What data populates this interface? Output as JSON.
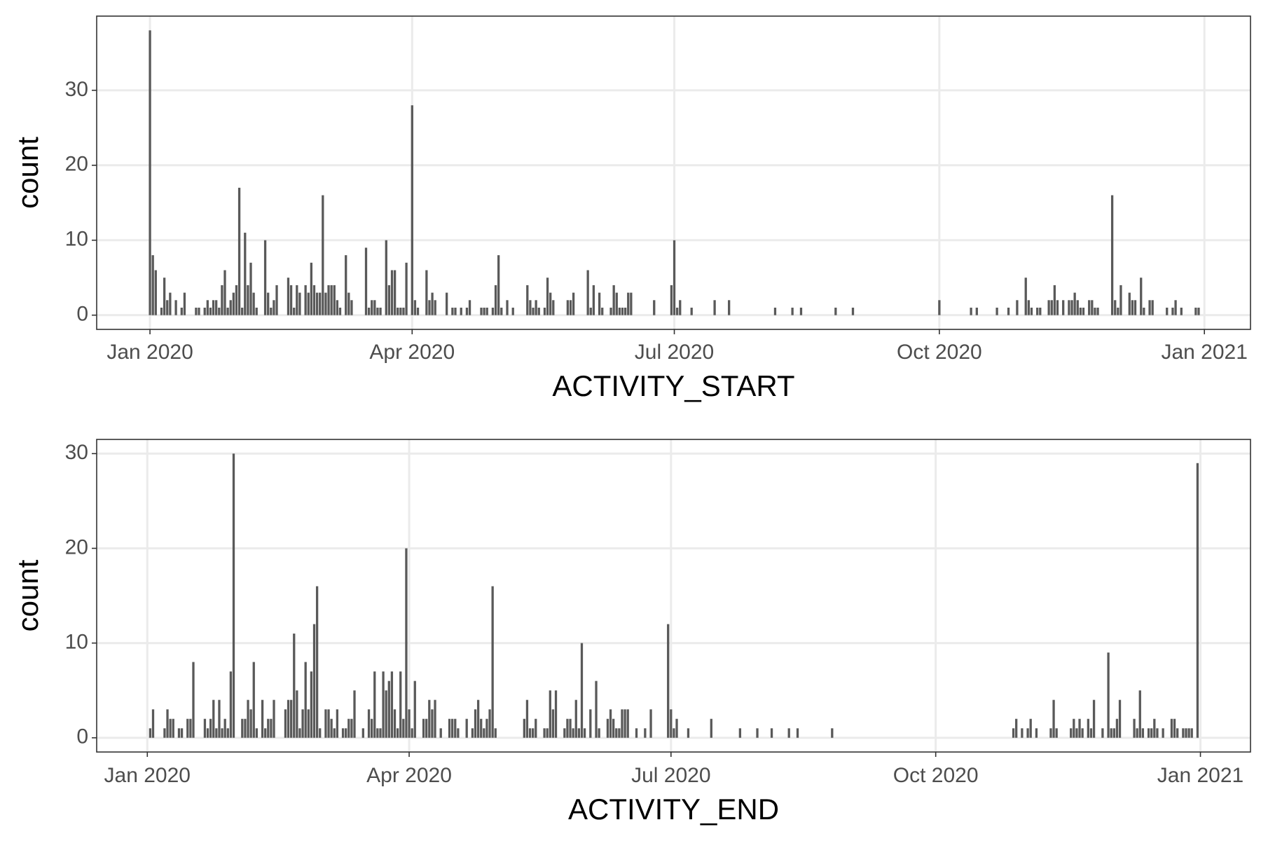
{
  "chart_data": [
    {
      "type": "bar",
      "xlabel": "ACTIVITY_START",
      "ylabel": "count",
      "color": "#595959",
      "grid": true,
      "xlim": [
        -18.5,
        382
      ],
      "xticks": [
        {
          "value": 0,
          "label": "Jan 2020"
        },
        {
          "value": 91,
          "label": "Apr 2020"
        },
        {
          "value": 182,
          "label": "Jul 2020"
        },
        {
          "value": 274,
          "label": "Oct 2020"
        },
        {
          "value": 366,
          "label": "Jan 2021"
        }
      ],
      "ylim": [
        -1.9,
        39.9
      ],
      "yticks": [
        0,
        10,
        20,
        30
      ],
      "x": [
        0,
        1,
        2,
        4,
        5,
        6,
        7,
        9,
        11,
        12,
        16,
        17,
        19,
        20,
        21,
        22,
        23,
        24,
        25,
        26,
        27,
        28,
        29,
        30,
        31,
        32,
        33,
        34,
        35,
        36,
        37,
        40,
        41,
        42,
        43,
        44,
        48,
        49,
        50,
        51,
        52,
        54,
        55,
        56,
        57,
        58,
        59,
        60,
        61,
        62,
        63,
        64,
        65,
        66,
        68,
        69,
        70,
        75,
        76,
        77,
        78,
        79,
        80,
        82,
        83,
        84,
        85,
        86,
        87,
        88,
        89,
        91,
        92,
        93,
        96,
        97,
        98,
        99,
        103,
        105,
        106,
        108,
        110,
        111,
        115,
        116,
        117,
        119,
        120,
        121,
        122,
        124,
        126,
        131,
        132,
        133,
        134,
        135,
        137,
        138,
        139,
        140,
        145,
        146,
        147,
        152,
        153,
        154,
        156,
        157,
        160,
        161,
        162,
        163,
        164,
        165,
        166,
        167,
        175,
        181,
        182,
        183,
        184,
        188,
        196,
        201,
        217,
        223,
        226,
        238,
        244,
        274,
        285,
        287,
        294,
        298,
        301,
        304,
        305,
        306,
        308,
        309,
        312,
        313,
        314,
        315,
        317,
        319,
        320,
        321,
        322,
        323,
        324,
        326,
        327,
        328,
        329,
        334,
        335,
        336,
        337,
        340,
        341,
        342,
        344,
        345,
        347,
        348,
        353,
        355,
        356,
        358,
        363,
        364
      ],
      "values": [
        38,
        8,
        6,
        1,
        5,
        2,
        3,
        2,
        1,
        3,
        1,
        1,
        1,
        2,
        1,
        2,
        2,
        1,
        4,
        6,
        1,
        2,
        3,
        4,
        17,
        1,
        11,
        4,
        7,
        3,
        1,
        10,
        3,
        1,
        2,
        4,
        5,
        4,
        1,
        4,
        3,
        4,
        3,
        7,
        4,
        3,
        3,
        16,
        3,
        4,
        4,
        4,
        2,
        1,
        8,
        3,
        2,
        9,
        1,
        2,
        2,
        1,
        1,
        10,
        4,
        6,
        6,
        1,
        1,
        1,
        7,
        28,
        2,
        1,
        6,
        2,
        3,
        2,
        3,
        1,
        1,
        1,
        1,
        2,
        1,
        1,
        1,
        1,
        4,
        8,
        1,
        2,
        1,
        4,
        2,
        1,
        2,
        1,
        1,
        5,
        3,
        2,
        2,
        2,
        3,
        6,
        1,
        4,
        3,
        1,
        1,
        4,
        3,
        1,
        1,
        1,
        3,
        3,
        2,
        4,
        10,
        1,
        2,
        1,
        2,
        2,
        1,
        1,
        1,
        1,
        1,
        2,
        1,
        1,
        1,
        1,
        2,
        5,
        2,
        1,
        1,
        1,
        2,
        2,
        4,
        2,
        2,
        2,
        2,
        3,
        2,
        1,
        1,
        2,
        2,
        1,
        1,
        16,
        2,
        1,
        4,
        3,
        2,
        2,
        5,
        1,
        2,
        2,
        1,
        1,
        2,
        1,
        1,
        1
      ]
    },
    {
      "type": "bar",
      "xlabel": "ACTIVITY_END",
      "ylabel": "count",
      "color": "#595959",
      "grid": true,
      "xlim": [
        -17.6,
        383.4
      ],
      "xticks": [
        {
          "value": 0,
          "label": "Jan 2020"
        },
        {
          "value": 91,
          "label": "Apr 2020"
        },
        {
          "value": 182,
          "label": "Jul 2020"
        },
        {
          "value": 274,
          "label": "Oct 2020"
        },
        {
          "value": 366,
          "label": "Jan 2021"
        }
      ],
      "ylim": [
        -1.5,
        31.5
      ],
      "yticks": [
        0,
        10,
        20,
        30
      ],
      "x": [
        1,
        2,
        6,
        7,
        8,
        9,
        11,
        12,
        14,
        15,
        16,
        20,
        21,
        22,
        23,
        24,
        25,
        26,
        27,
        28,
        29,
        30,
        33,
        34,
        35,
        36,
        37,
        38,
        40,
        41,
        42,
        43,
        44,
        48,
        49,
        50,
        51,
        52,
        53,
        54,
        55,
        56,
        57,
        58,
        59,
        60,
        62,
        63,
        64,
        65,
        66,
        68,
        69,
        70,
        71,
        72,
        75,
        77,
        78,
        79,
        80,
        81,
        82,
        83,
        84,
        85,
        86,
        87,
        88,
        89,
        90,
        91,
        92,
        93,
        96,
        97,
        98,
        99,
        100,
        102,
        105,
        106,
        107,
        108,
        111,
        113,
        114,
        115,
        116,
        117,
        118,
        119,
        120,
        121,
        131,
        132,
        133,
        134,
        135,
        138,
        139,
        140,
        141,
        142,
        145,
        146,
        147,
        148,
        149,
        150,
        151,
        152,
        154,
        156,
        157,
        160,
        161,
        162,
        163,
        164,
        165,
        166,
        167,
        170,
        173,
        175,
        181,
        182,
        183,
        184,
        188,
        196,
        206,
        212,
        217,
        223,
        226,
        238,
        301,
        302,
        304,
        306,
        307,
        309,
        314,
        315,
        316,
        321,
        322,
        323,
        324,
        325,
        327,
        328,
        329,
        332,
        334,
        335,
        336,
        337,
        338,
        343,
        344,
        345,
        346,
        348,
        349,
        350,
        351,
        353,
        356,
        357,
        358,
        360,
        361,
        362,
        363,
        365
      ],
      "values": [
        1,
        3,
        1,
        3,
        2,
        2,
        1,
        1,
        2,
        2,
        8,
        2,
        1,
        2,
        4,
        1,
        4,
        1,
        2,
        1,
        7,
        30,
        2,
        2,
        4,
        3,
        8,
        1,
        4,
        1,
        2,
        2,
        4,
        3,
        4,
        4,
        11,
        5,
        1,
        3,
        8,
        3,
        7,
        12,
        16,
        1,
        3,
        3,
        2,
        1,
        3,
        1,
        1,
        2,
        2,
        5,
        1,
        3,
        2,
        7,
        1,
        1,
        7,
        5,
        6,
        7,
        3,
        1,
        7,
        2,
        20,
        3,
        1,
        6,
        2,
        2,
        4,
        3,
        4,
        1,
        2,
        2,
        2,
        1,
        2,
        1,
        3,
        4,
        2,
        1,
        2,
        3,
        16,
        1,
        2,
        4,
        1,
        1,
        2,
        1,
        1,
        5,
        3,
        5,
        1,
        2,
        2,
        1,
        4,
        1,
        10,
        1,
        3,
        6,
        1,
        2,
        3,
        2,
        1,
        1,
        3,
        3,
        3,
        1,
        1,
        3,
        12,
        3,
        1,
        2,
        1,
        2,
        1,
        1,
        1,
        1,
        1,
        1,
        1,
        2,
        1,
        1,
        2,
        1,
        1,
        4,
        1,
        1,
        2,
        1,
        2,
        1,
        2,
        1,
        4,
        1,
        9,
        1,
        1,
        2,
        4,
        2,
        1,
        5,
        1,
        1,
        1,
        2,
        1,
        1,
        2,
        2,
        1,
        1,
        1,
        1,
        1,
        29
      ]
    }
  ]
}
